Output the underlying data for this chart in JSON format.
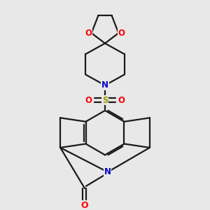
{
  "bg_color": "#e8e8e8",
  "bond_color": "#1a1a1a",
  "N_color": "#0000cc",
  "O_color": "#ff0000",
  "S_color": "#999900",
  "lw": 1.6,
  "figsize": [
    3.0,
    3.0
  ],
  "dpi": 100,
  "xlim": [
    -2.5,
    2.5
  ],
  "ylim": [
    -3.8,
    3.8
  ]
}
